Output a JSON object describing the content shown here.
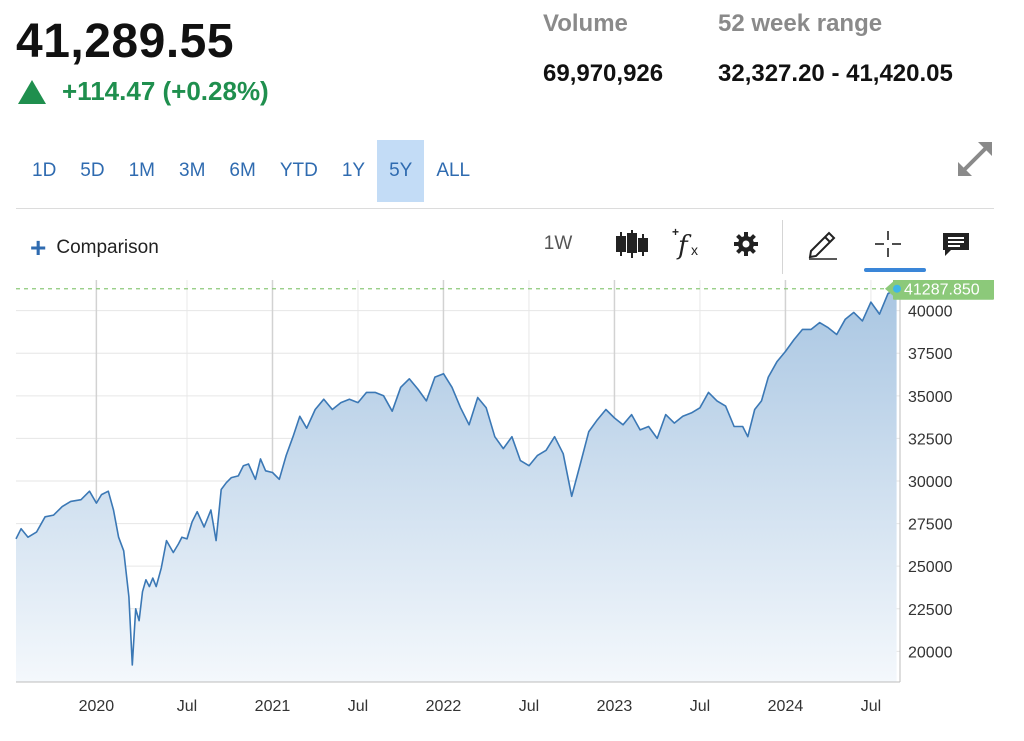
{
  "quote": {
    "price": "41,289.55",
    "change": "+114.47 (+0.28%)",
    "volume_label": "Volume",
    "volume_value": "69,970,926",
    "range_label": "52 week range",
    "range_value": "32,327.20 - 41,420.05"
  },
  "time_ranges": [
    "1D",
    "5D",
    "1M",
    "3M",
    "6M",
    "YTD",
    "1Y",
    "5Y",
    "ALL"
  ],
  "active_range": "5Y",
  "toolbar": {
    "comparison_label": "Comparison",
    "interval_label": "1W",
    "icons": [
      "candlestick-icon",
      "function-icon",
      "gear-icon",
      "pencil-icon",
      "crosshair-icon",
      "comment-icon"
    ]
  },
  "colors": {
    "accent": "#2f6bb0",
    "positive": "#1f8f4e",
    "line": "#3b78b5",
    "price_tag": "#8cc97a",
    "active_range_bg": "#c3dcf6"
  },
  "chart_data": {
    "type": "area",
    "ylim": [
      18200,
      41800
    ],
    "yticks": [
      20000,
      22500,
      25000,
      27500,
      30000,
      32500,
      35000,
      37500,
      40000
    ],
    "ytick_labels": [
      "20000",
      "22500",
      "25000",
      "27500",
      "30000",
      "32500",
      "35000",
      "37500",
      "40000"
    ],
    "xlim": [
      2019.5,
      2024.67
    ],
    "xticks": [
      {
        "x": 2019.97,
        "label": "2020",
        "major": true
      },
      {
        "x": 2020.5,
        "label": "Jul",
        "major": false
      },
      {
        "x": 2021.0,
        "label": "2021",
        "major": true
      },
      {
        "x": 2021.5,
        "label": "Jul",
        "major": false
      },
      {
        "x": 2022.0,
        "label": "2022",
        "major": true
      },
      {
        "x": 2022.5,
        "label": "Jul",
        "major": false
      },
      {
        "x": 2023.0,
        "label": "2023",
        "major": true
      },
      {
        "x": 2023.5,
        "label": "Jul",
        "major": false
      },
      {
        "x": 2024.0,
        "label": "2024",
        "major": true
      },
      {
        "x": 2024.5,
        "label": "Jul",
        "major": false
      }
    ],
    "last_value": 41287.85,
    "last_value_label": "41287.850",
    "series": [
      {
        "x": [
          2019.5,
          2019.53,
          2019.57,
          2019.62,
          2019.67,
          2019.72,
          2019.77,
          2019.82,
          2019.88,
          2019.93,
          2019.97,
          2020.0,
          2020.04,
          2020.07,
          2020.1,
          2020.13,
          2020.16,
          2020.18,
          2020.2,
          2020.22,
          2020.24,
          2020.26,
          2020.28,
          2020.3,
          2020.32,
          2020.35,
          2020.38,
          2020.42,
          2020.45,
          2020.47,
          2020.5,
          2020.53,
          2020.56,
          2020.6,
          2020.64,
          2020.67,
          2020.7,
          2020.73,
          2020.76,
          2020.8,
          2020.83,
          2020.86,
          2020.9,
          2020.93,
          2020.96,
          2021.0,
          2021.04,
          2021.08,
          2021.12,
          2021.16,
          2021.2,
          2021.25,
          2021.3,
          2021.35,
          2021.4,
          2021.45,
          2021.5,
          2021.55,
          2021.6,
          2021.65,
          2021.7,
          2021.75,
          2021.8,
          2021.85,
          2021.9,
          2021.95,
          2022.0,
          2022.05,
          2022.1,
          2022.15,
          2022.2,
          2022.25,
          2022.3,
          2022.35,
          2022.4,
          2022.45,
          2022.5,
          2022.55,
          2022.6,
          2022.65,
          2022.7,
          2022.75,
          2022.8,
          2022.85,
          2022.9,
          2022.95,
          2023.0,
          2023.05,
          2023.1,
          2023.15,
          2023.2,
          2023.25,
          2023.3,
          2023.35,
          2023.4,
          2023.45,
          2023.5,
          2023.55,
          2023.6,
          2023.65,
          2023.7,
          2023.75,
          2023.78,
          2023.82,
          2023.86,
          2023.9,
          2023.95,
          2024.0,
          2024.05,
          2024.1,
          2024.15,
          2024.2,
          2024.25,
          2024.3,
          2024.35,
          2024.4,
          2024.45,
          2024.5,
          2024.55,
          2024.6,
          2024.65
        ],
        "values": [
          26600,
          27200,
          26700,
          27000,
          27900,
          28000,
          28500,
          28800,
          28900,
          29400,
          28700,
          29200,
          29400,
          28300,
          26700,
          25900,
          23200,
          19200,
          22500,
          21800,
          23500,
          24200,
          23800,
          24300,
          23800,
          24900,
          26500,
          25800,
          26300,
          26700,
          26600,
          27600,
          28200,
          27300,
          28300,
          26500,
          29500,
          29900,
          30200,
          30300,
          30900,
          31000,
          30100,
          31300,
          30600,
          30500,
          30100,
          31500,
          32600,
          33800,
          33100,
          34200,
          34800,
          34200,
          34600,
          34800,
          34600,
          35200,
          35200,
          35000,
          34100,
          35500,
          36000,
          35400,
          34700,
          36100,
          36300,
          35500,
          34300,
          33300,
          34900,
          34300,
          32600,
          31900,
          32600,
          31200,
          30900,
          31500,
          31800,
          32600,
          31600,
          29100,
          31000,
          32900,
          33600,
          34200,
          33700,
          33300,
          33900,
          33000,
          33200,
          32500,
          33900,
          33400,
          33800,
          34000,
          34300,
          35200,
          34700,
          34400,
          33200,
          33200,
          32600,
          34200,
          34700,
          36100,
          37000,
          37600,
          38300,
          38900,
          38900,
          39300,
          39000,
          38600,
          39500,
          39900,
          39400,
          40500,
          39800,
          41000,
          41287.85
        ]
      }
    ]
  }
}
